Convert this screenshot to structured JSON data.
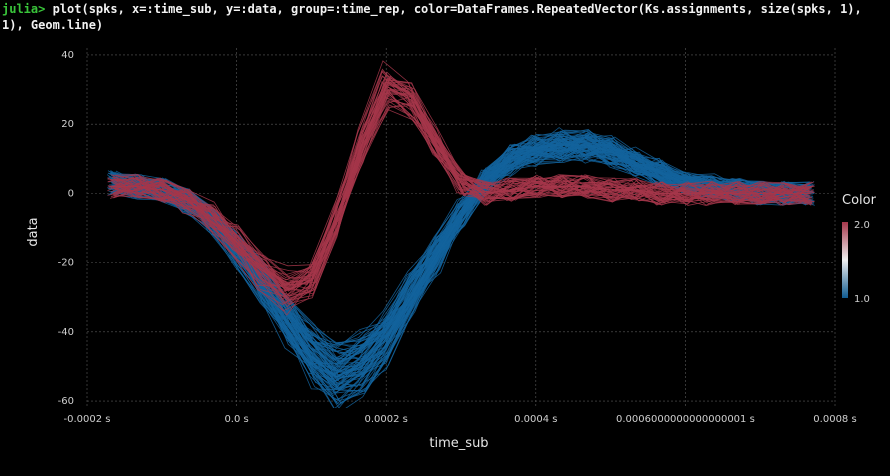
{
  "terminal": {
    "prompt": "julia>",
    "command": " plot(spks, x=:time_sub, y=:data, group=:time_rep, color=DataFrames.RepeatedVector(Ks.assignments, size(spks, 1), 1), Geom.line)"
  },
  "chart_data": {
    "type": "line",
    "xlabel": "time_sub",
    "ylabel": "data",
    "x_ticks": [
      -0.0002,
      0.0,
      0.0002,
      0.0004,
      0.0006,
      0.0008
    ],
    "x_tick_labels": [
      "-0.0002 s",
      "0.0 s",
      "0.0002 s",
      "0.0004 s",
      "0.0006000000000000001 s",
      "0.0008 s"
    ],
    "xlim": [
      -0.0002,
      0.0008
    ],
    "y_ticks": [
      -60,
      -40,
      -20,
      0,
      20,
      40
    ],
    "y_tick_labels": [
      "-60",
      "-40",
      "-20",
      "0",
      "20",
      "40"
    ],
    "ylim": [
      -62,
      42
    ],
    "grid": true,
    "legend": {
      "title": "Color",
      "placement": "right",
      "min_label": "1.0",
      "max_label": "2.0",
      "low_color": "#0f5a8f",
      "mid_color": "#f0f0f0",
      "high_color": "#a5364a"
    },
    "series": [
      {
        "cluster": 1.0,
        "color": "#13639c",
        "line_count": 90,
        "x": [
          -0.000167,
          -0.000133,
          -0.0001,
          -6.67e-05,
          -3.33e-05,
          0.0,
          3.33e-05,
          6.67e-05,
          0.0001,
          0.000133,
          0.000167,
          0.0002,
          0.000233,
          0.000267,
          0.0003,
          0.000333,
          0.000367,
          0.0004,
          0.000433,
          0.000467,
          0.0005,
          0.000533,
          0.000567,
          0.0006,
          0.000633,
          0.000667,
          0.0007,
          0.000733,
          0.000767
        ],
        "values": [
          3,
          2,
          1,
          -2,
          -8,
          -16,
          -26,
          -37,
          -47,
          -53,
          -50,
          -42,
          -30,
          -18,
          -6,
          4,
          10,
          13,
          14,
          14,
          12,
          9,
          6,
          3,
          2,
          1,
          0,
          0,
          0
        ]
      },
      {
        "cluster": 2.0,
        "color": "#a5364a",
        "line_count": 45,
        "x": [
          -0.000167,
          -0.000133,
          -0.0001,
          -6.67e-05,
          -3.33e-05,
          0.0,
          3.33e-05,
          6.67e-05,
          0.0001,
          0.000133,
          0.000167,
          0.0002,
          0.000233,
          0.000267,
          0.0003,
          0.000333,
          0.000367,
          0.0004,
          0.000433,
          0.000467,
          0.0005,
          0.000533,
          0.000567,
          0.0006,
          0.000633,
          0.000667,
          0.0007,
          0.000733,
          0.000767
        ],
        "values": [
          2,
          2,
          1,
          -2,
          -7,
          -14,
          -22,
          -28,
          -25,
          -8,
          14,
          31,
          27,
          14,
          3,
          0,
          1,
          2,
          2,
          2,
          1,
          1,
          0,
          0,
          0,
          0,
          0,
          0,
          0
        ]
      }
    ]
  }
}
